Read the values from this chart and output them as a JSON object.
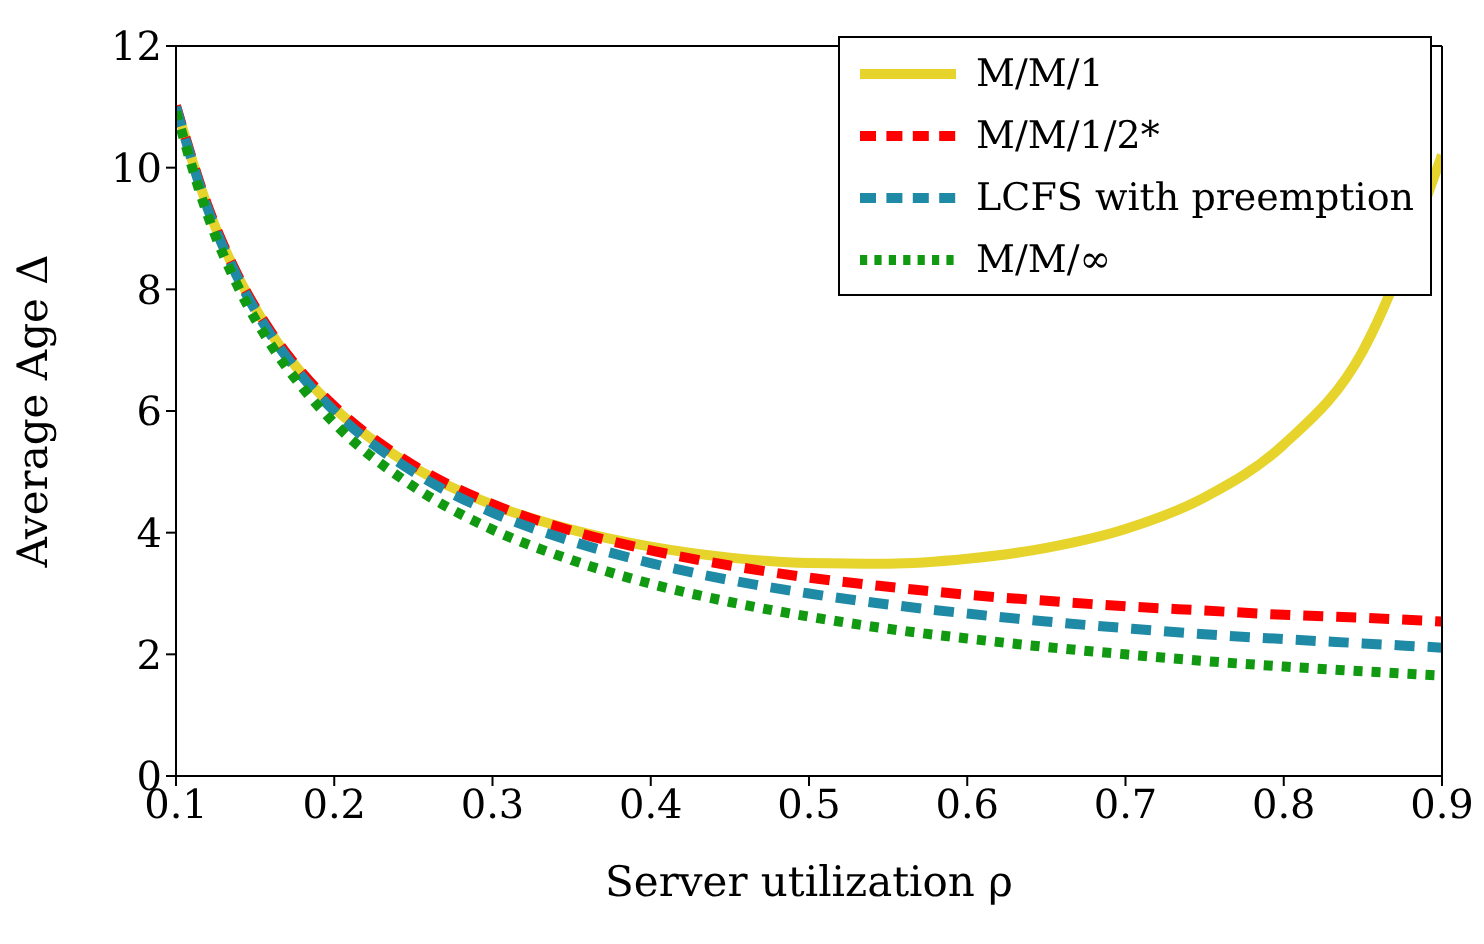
{
  "chart_data": {
    "type": "line",
    "xlabel": "Server utilization ρ",
    "ylabel": "Average Age Δ",
    "x": [
      0.1,
      0.12,
      0.14,
      0.16,
      0.18,
      0.2,
      0.25,
      0.3,
      0.35,
      0.4,
      0.45,
      0.5,
      0.55,
      0.6,
      0.65,
      0.7,
      0.75,
      0.8,
      0.85,
      0.9
    ],
    "series": [
      {
        "name": "M/M/1",
        "color": "#e6d32c",
        "line_style": "solid",
        "values": [
          11.01,
          9.35,
          8.17,
          7.28,
          6.6,
          6.05,
          5.08,
          4.46,
          4.05,
          3.77,
          3.59,
          3.5,
          3.49,
          3.57,
          3.75,
          4.06,
          4.58,
          5.45,
          6.99,
          10.21
        ]
      },
      {
        "name": "M/M/1/2*",
        "color": "#ff0000",
        "line_style": "dashed",
        "values": [
          11.02,
          9.37,
          8.18,
          7.3,
          6.62,
          6.08,
          5.11,
          4.47,
          4.03,
          3.71,
          3.46,
          3.26,
          3.11,
          2.98,
          2.88,
          2.79,
          2.72,
          2.65,
          2.6,
          2.54
        ]
      },
      {
        "name": "LCFS with preemption",
        "color": "#1f8aa6",
        "line_style": "dashed",
        "values": [
          11,
          9.33,
          8.14,
          7.25,
          6.56,
          6,
          5,
          4.33,
          3.86,
          3.5,
          3.22,
          3,
          2.82,
          2.67,
          2.54,
          2.43,
          2.33,
          2.25,
          2.18,
          2.11
        ]
      },
      {
        "name": "M/M/∞",
        "color": "#119a11",
        "line_style": "dotted",
        "values": [
          10.92,
          9.22,
          8,
          7.09,
          6.38,
          5.8,
          4.76,
          4.05,
          3.55,
          3.16,
          2.86,
          2.62,
          2.42,
          2.26,
          2.12,
          2,
          1.89,
          1.8,
          1.72,
          1.65
        ]
      }
    ],
    "xlim": [
      0.1,
      0.9
    ],
    "xticks": [
      0.1,
      0.2,
      0.3,
      0.4,
      0.5,
      0.6,
      0.7,
      0.8,
      0.9
    ],
    "ylim": [
      0,
      12
    ],
    "yticks": [
      0,
      2,
      4,
      6,
      8,
      10,
      12
    ],
    "grid": false,
    "legend": "top right",
    "marker": "none"
  }
}
